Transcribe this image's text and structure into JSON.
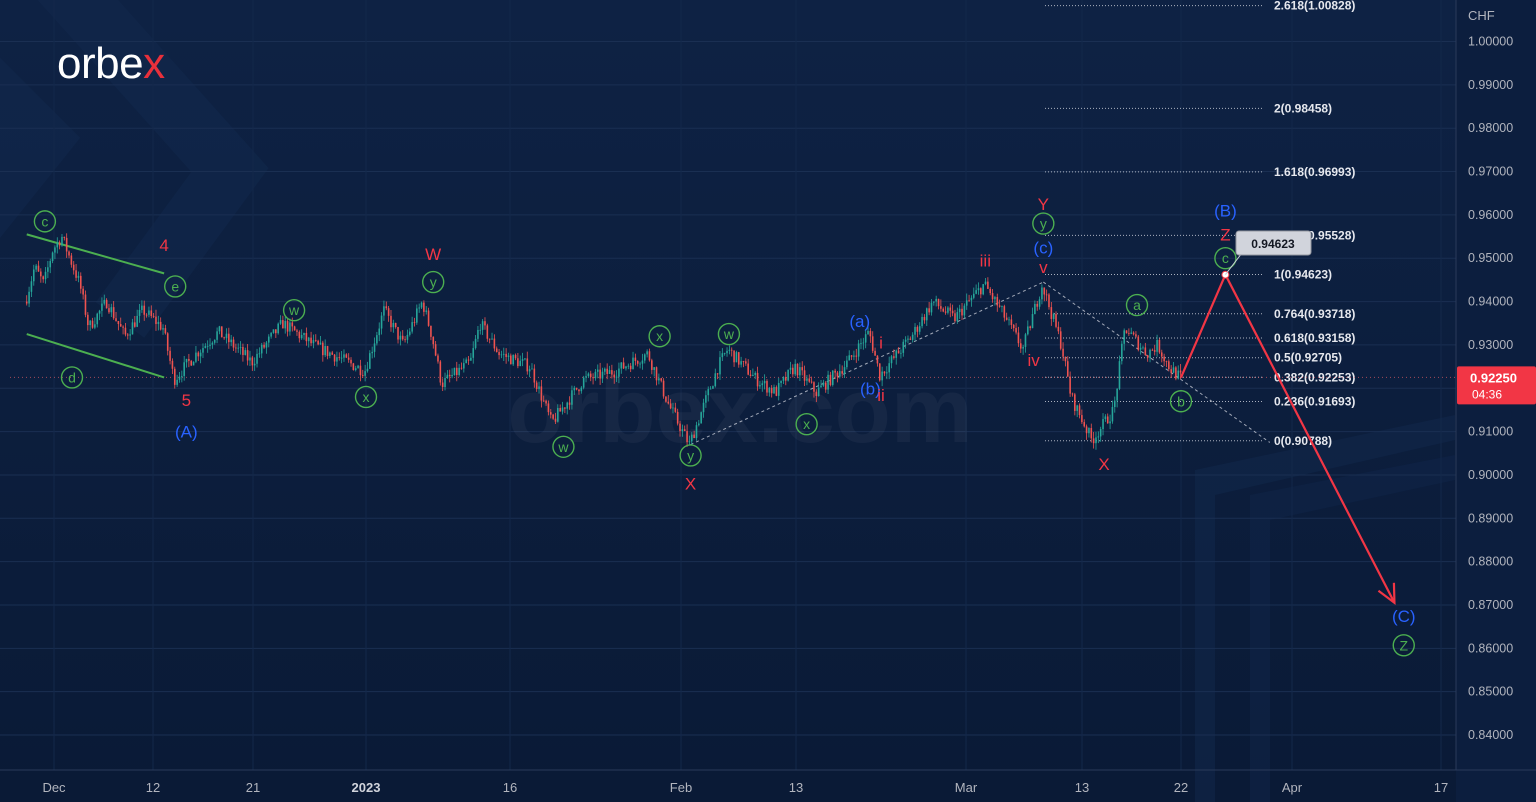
{
  "brand": {
    "logo_text": "orbex",
    "watermark": "orbex.com"
  },
  "chart_data": {
    "type": "candlestick",
    "currency_label": "CHF",
    "ylim": [
      0.83,
      1.01
    ],
    "y_ticks": [
      {
        "value": 1.0,
        "label": "1.00000"
      },
      {
        "value": 0.99,
        "label": "0.99000"
      },
      {
        "value": 0.98,
        "label": "0.98000"
      },
      {
        "value": 0.97,
        "label": "0.97000"
      },
      {
        "value": 0.96,
        "label": "0.96000"
      },
      {
        "value": 0.95,
        "label": "0.95000"
      },
      {
        "value": 0.94,
        "label": "0.94000"
      },
      {
        "value": 0.93,
        "label": "0.93000"
      },
      {
        "value": 0.92,
        "label": "0.92000"
      },
      {
        "value": 0.91,
        "label": "0.91000"
      },
      {
        "value": 0.9,
        "label": "0.90000"
      },
      {
        "value": 0.89,
        "label": "0.89000"
      },
      {
        "value": 0.88,
        "label": "0.88000"
      },
      {
        "value": 0.87,
        "label": "0.87000"
      },
      {
        "value": 0.86,
        "label": "0.86000"
      },
      {
        "value": 0.85,
        "label": "0.85000"
      },
      {
        "value": 0.84,
        "label": "0.84000"
      }
    ],
    "x_ticks": [
      {
        "date": "2022-12-01",
        "label": "Dec",
        "bold": false
      },
      {
        "date": "2022-12-12",
        "label": "12",
        "bold": false
      },
      {
        "date": "2022-12-21",
        "label": "21",
        "bold": false
      },
      {
        "date": "2023-01-01",
        "label": "2023",
        "bold": true
      },
      {
        "date": "2023-01-16",
        "label": "16",
        "bold": false
      },
      {
        "date": "2023-02-01",
        "label": "Feb",
        "bold": false
      },
      {
        "date": "2023-02-13",
        "label": "13",
        "bold": false
      },
      {
        "date": "2023-03-01",
        "label": "Mar",
        "bold": false
      },
      {
        "date": "2023-03-13",
        "label": "13",
        "bold": false
      },
      {
        "date": "2023-03-22",
        "label": "22",
        "bold": false
      },
      {
        "date": "2023-04-01",
        "label": "Apr",
        "bold": false
      },
      {
        "date": "2023-04-17",
        "label": "17",
        "bold": false
      }
    ],
    "price_path": [
      {
        "date": "2022-11-28",
        "price": 0.94
      },
      {
        "date": "2022-11-29",
        "price": 0.948
      },
      {
        "date": "2022-11-30",
        "price": 0.944
      },
      {
        "date": "2022-12-01",
        "price": 0.952
      },
      {
        "date": "2022-12-02",
        "price": 0.955
      },
      {
        "date": "2022-12-04",
        "price": 0.944
      },
      {
        "date": "2022-12-05",
        "price": 0.934
      },
      {
        "date": "2022-12-07",
        "price": 0.94
      },
      {
        "date": "2022-12-09",
        "price": 0.932
      },
      {
        "date": "2022-12-11",
        "price": 0.938
      },
      {
        "date": "2022-12-13",
        "price": 0.934
      },
      {
        "date": "2022-12-14",
        "price": 0.922
      },
      {
        "date": "2022-12-16",
        "price": 0.928
      },
      {
        "date": "2022-12-18",
        "price": 0.933
      },
      {
        "date": "2022-12-21",
        "price": 0.926
      },
      {
        "date": "2022-12-24",
        "price": 0.935
      },
      {
        "date": "2022-12-27",
        "price": 0.93
      },
      {
        "date": "2023-01-01",
        "price": 0.924
      },
      {
        "date": "2023-01-03",
        "price": 0.938
      },
      {
        "date": "2023-01-05",
        "price": 0.93
      },
      {
        "date": "2023-01-07",
        "price": 0.94
      },
      {
        "date": "2023-01-08",
        "price": 0.932
      },
      {
        "date": "2023-01-09",
        "price": 0.921
      },
      {
        "date": "2023-01-12",
        "price": 0.926
      },
      {
        "date": "2023-01-13",
        "price": 0.935
      },
      {
        "date": "2023-01-15",
        "price": 0.928
      },
      {
        "date": "2023-01-18",
        "price": 0.925
      },
      {
        "date": "2023-01-20",
        "price": 0.912
      },
      {
        "date": "2023-01-23",
        "price": 0.922
      },
      {
        "date": "2023-01-26",
        "price": 0.924
      },
      {
        "date": "2023-01-29",
        "price": 0.928
      },
      {
        "date": "2023-01-31",
        "price": 0.916
      },
      {
        "date": "2023-02-02",
        "price": 0.907
      },
      {
        "date": "2023-02-05",
        "price": 0.925
      },
      {
        "date": "2023-02-06",
        "price": 0.929
      },
      {
        "date": "2023-02-09",
        "price": 0.922
      },
      {
        "date": "2023-02-11",
        "price": 0.919
      },
      {
        "date": "2023-02-13",
        "price": 0.925
      },
      {
        "date": "2023-02-15",
        "price": 0.919
      },
      {
        "date": "2023-02-18",
        "price": 0.926
      },
      {
        "date": "2023-02-20",
        "price": 0.933
      },
      {
        "date": "2023-02-21",
        "price": 0.923
      },
      {
        "date": "2023-02-24",
        "price": 0.932
      },
      {
        "date": "2023-02-26",
        "price": 0.94
      },
      {
        "date": "2023-02-28",
        "price": 0.936
      },
      {
        "date": "2023-03-03",
        "price": 0.944
      },
      {
        "date": "2023-03-05",
        "price": 0.937
      },
      {
        "date": "2023-03-07",
        "price": 0.929
      },
      {
        "date": "2023-03-09",
        "price": 0.944
      },
      {
        "date": "2023-03-11",
        "price": 0.93
      },
      {
        "date": "2023-03-12",
        "price": 0.918
      },
      {
        "date": "2023-03-14",
        "price": 0.908
      },
      {
        "date": "2023-03-16",
        "price": 0.915
      },
      {
        "date": "2023-03-17",
        "price": 0.934
      },
      {
        "date": "2023-03-19",
        "price": 0.928
      },
      {
        "date": "2023-03-20",
        "price": 0.93
      },
      {
        "date": "2023-03-21",
        "price": 0.925
      },
      {
        "date": "2023-03-22",
        "price": 0.9225
      }
    ],
    "last_price": {
      "label": "0.92250",
      "countdown": "04:36",
      "value": 0.9225,
      "color": "#f23645"
    },
    "fibonacci_levels": [
      {
        "value": 1.00828,
        "label": "2.618(1.00828)"
      },
      {
        "value": 0.98458,
        "label": "2(0.98458)"
      },
      {
        "value": 0.96993,
        "label": "1.618(0.96993)"
      },
      {
        "value": 0.95528,
        "label": "1.236(0.95528)"
      },
      {
        "value": 0.94623,
        "label": "1(0.94623)"
      },
      {
        "value": 0.93718,
        "label": "0.764(0.93718)"
      },
      {
        "value": 0.93158,
        "label": "0.618(0.93158)"
      },
      {
        "value": 0.92705,
        "label": "0.5(0.92705)"
      },
      {
        "value": 0.92253,
        "label": "0.382(0.92253)"
      },
      {
        "value": 0.91693,
        "label": "0.236(0.91693)"
      },
      {
        "value": 0.90788,
        "label": "0(0.90788)"
      }
    ],
    "price_tag": {
      "label": "0.94623",
      "date": "2023-03-26",
      "value": 0.94623
    },
    "channel_lines": [
      {
        "from": {
          "date": "2022-11-28",
          "price": 0.9555
        },
        "to": {
          "date": "2022-12-13",
          "price": 0.9465
        }
      },
      {
        "from": {
          "date": "2022-11-28",
          "price": 0.9325
        },
        "to": {
          "date": "2022-12-13",
          "price": 0.9225
        }
      }
    ],
    "dashed_lines": [
      {
        "from": {
          "date": "2023-02-02",
          "price": 0.907
        },
        "to": {
          "date": "2023-03-09",
          "price": 0.9445
        }
      },
      {
        "from": {
          "date": "2023-03-09",
          "price": 0.9445
        },
        "to": {
          "date": "2023-03-30",
          "price": 0.9075
        }
      }
    ],
    "forecast_path": [
      {
        "date": "2023-03-22",
        "price": 0.9225
      },
      {
        "date": "2023-03-26",
        "price": 0.9462
      },
      {
        "date": "2023-04-12",
        "price": 0.8705
      }
    ],
    "wave_labels": [
      {
        "text": "c",
        "date": "2022-11-30",
        "price": 0.9585,
        "color": "#4caf50",
        "circled": true
      },
      {
        "text": "e",
        "date": "2022-12-14",
        "price": 0.9435,
        "color": "#4caf50",
        "circled": true
      },
      {
        "text": "d",
        "date": "2022-12-03",
        "price": 0.9225,
        "color": "#4caf50",
        "circled": true
      },
      {
        "text": "4",
        "date": "2022-12-13",
        "price": 0.953,
        "color": "#f23645",
        "circled": false
      },
      {
        "text": "5",
        "date": "2022-12-15",
        "price": 0.9173,
        "color": "#f23645",
        "circled": false
      },
      {
        "text": "(A)",
        "date": "2022-12-15",
        "price": 0.91,
        "color": "#2962ff",
        "circled": false
      },
      {
        "text": "w",
        "date": "2022-12-25",
        "price": 0.938,
        "color": "#4caf50",
        "circled": true
      },
      {
        "text": "x",
        "date": "2023-01-01",
        "price": 0.918,
        "color": "#4caf50",
        "circled": true
      },
      {
        "text": "y",
        "date": "2023-01-08",
        "price": 0.9445,
        "color": "#4caf50",
        "circled": true
      },
      {
        "text": "W",
        "date": "2023-01-08",
        "price": 0.951,
        "color": "#f23645",
        "circled": false
      },
      {
        "text": "w",
        "date": "2023-01-21",
        "price": 0.9065,
        "color": "#4caf50",
        "circled": true
      },
      {
        "text": "x",
        "date": "2023-01-30",
        "price": 0.932,
        "color": "#4caf50",
        "circled": true
      },
      {
        "text": "w",
        "date": "2023-02-06",
        "price": 0.9325,
        "color": "#4caf50",
        "circled": true
      },
      {
        "text": "y",
        "date": "2023-02-02",
        "price": 0.9045,
        "color": "#4caf50",
        "circled": true
      },
      {
        "text": "X",
        "date": "2023-02-02",
        "price": 0.898,
        "color": "#f23645",
        "circled": false
      },
      {
        "text": "x",
        "date": "2023-02-14",
        "price": 0.9117,
        "color": "#4caf50",
        "circled": true
      },
      {
        "text": "(a)",
        "date": "2023-02-19",
        "price": 0.9355,
        "color": "#2962ff",
        "circled": false
      },
      {
        "text": "i",
        "date": "2023-02-21",
        "price": 0.9305,
        "color": "#f23645",
        "circled": false
      },
      {
        "text": "(b)",
        "date": "2023-02-20",
        "price": 0.92,
        "color": "#2962ff",
        "circled": false
      },
      {
        "text": "ii",
        "date": "2023-02-21",
        "price": 0.9185,
        "color": "#f23645",
        "circled": false
      },
      {
        "text": "iii",
        "date": "2023-03-03",
        "price": 0.9495,
        "color": "#f23645",
        "circled": false
      },
      {
        "text": "Y",
        "date": "2023-03-09",
        "price": 0.9625,
        "color": "#f23645",
        "circled": false
      },
      {
        "text": "y",
        "date": "2023-03-09",
        "price": 0.958,
        "color": "#4caf50",
        "circled": true
      },
      {
        "text": "(c)",
        "date": "2023-03-09",
        "price": 0.9525,
        "color": "#2962ff",
        "circled": false
      },
      {
        "text": "v",
        "date": "2023-03-09",
        "price": 0.948,
        "color": "#f23645",
        "circled": false
      },
      {
        "text": "iv",
        "date": "2023-03-08",
        "price": 0.9265,
        "color": "#f23645",
        "circled": false
      },
      {
        "text": "X",
        "date": "2023-03-15",
        "price": 0.9025,
        "color": "#f23645",
        "circled": false
      },
      {
        "text": "a",
        "date": "2023-03-18",
        "price": 0.9392,
        "color": "#4caf50",
        "circled": true
      },
      {
        "text": "b",
        "date": "2023-03-22",
        "price": 0.917,
        "color": "#4caf50",
        "circled": true
      },
      {
        "text": "(B)",
        "date": "2023-03-26",
        "price": 0.961,
        "color": "#2962ff",
        "circled": false
      },
      {
        "text": "Z",
        "date": "2023-03-26",
        "price": 0.9555,
        "color": "#f23645",
        "circled": false
      },
      {
        "text": "c",
        "date": "2023-03-26",
        "price": 0.95,
        "color": "#4caf50",
        "circled": true
      },
      {
        "text": "(C)",
        "date": "2023-04-13",
        "price": 0.8675,
        "color": "#2962ff",
        "circled": false
      },
      {
        "text": "Z",
        "date": "2023-04-13",
        "price": 0.8607,
        "color": "#4caf50",
        "circled": true
      }
    ]
  }
}
